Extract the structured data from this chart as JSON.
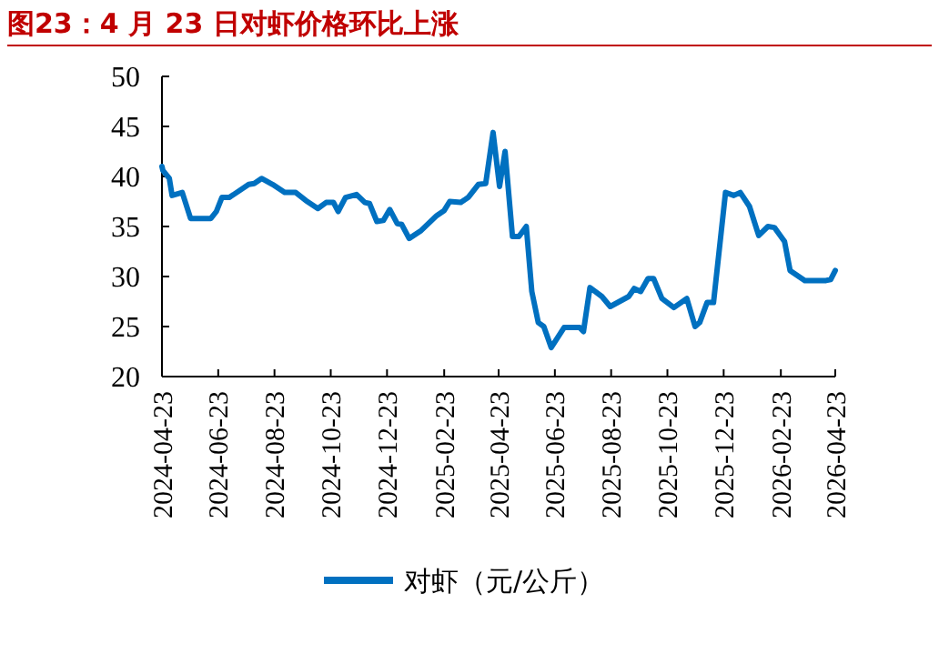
{
  "chart_data": {
    "type": "line",
    "title": "图23：4 月 23 日对虾价格环比上涨",
    "x": [
      "2024-04-23",
      "2024-04-24",
      "2024-05-01",
      "2024-05-04",
      "2024-05-15",
      "2024-05-24",
      "2024-06-15",
      "2024-06-21",
      "2024-06-27",
      "2024-07-05",
      "2024-07-26",
      "2024-08-01",
      "2024-08-09",
      "2024-08-21",
      "2024-09-03",
      "2024-09-15",
      "2024-09-26",
      "2024-10-09",
      "2024-10-18",
      "2024-10-26",
      "2024-10-31",
      "2024-11-08",
      "2024-11-20",
      "2024-11-29",
      "2024-12-04",
      "2024-12-12",
      "2024-12-19",
      "2024-12-26",
      "2025-01-03",
      "2025-01-08",
      "2025-01-16",
      "2025-01-29",
      "2025-02-15",
      "2025-02-23",
      "2025-03-01",
      "2025-03-13",
      "2025-03-21",
      "2025-04-01",
      "2025-04-09",
      "2025-04-17",
      "2025-04-24",
      "2025-04-30",
      "2025-05-08",
      "2025-05-15",
      "2025-05-23",
      "2025-05-29",
      "2025-06-05",
      "2025-06-11",
      "2025-06-19",
      "2025-07-03",
      "2025-07-20",
      "2025-07-24",
      "2025-07-31",
      "2025-08-13",
      "2025-08-22",
      "2025-09-01",
      "2025-09-11",
      "2025-09-17",
      "2025-09-24",
      "2025-10-02",
      "2025-10-08",
      "2025-10-17",
      "2025-10-30",
      "2025-11-13",
      "2025-11-22",
      "2025-11-27",
      "2025-12-05",
      "2025-12-12",
      "2025-12-25",
      "2026-01-03",
      "2026-01-10",
      "2026-01-20",
      "2026-01-30",
      "2026-02-09",
      "2026-02-16",
      "2026-02-27",
      "2026-03-05",
      "2026-03-21",
      "2026-04-13",
      "2026-04-18",
      "2026-04-23"
    ],
    "series": [
      {
        "name": "对虾（元/公斤）",
        "color": "#0070c0",
        "values": [
          41.0,
          40.6,
          39.8,
          38.1,
          38.4,
          35.8,
          35.8,
          36.5,
          37.9,
          37.9,
          39.2,
          39.3,
          39.8,
          39.2,
          38.4,
          38.4,
          37.6,
          36.8,
          37.4,
          37.4,
          36.5,
          37.9,
          38.2,
          37.4,
          37.3,
          35.5,
          35.6,
          36.7,
          35.3,
          35.2,
          33.8,
          34.6,
          36.1,
          36.6,
          37.5,
          37.4,
          37.9,
          39.2,
          39.3,
          44.4,
          39.0,
          42.5,
          34.0,
          34.0,
          35.0,
          28.5,
          25.4,
          25.0,
          22.9,
          24.9,
          24.9,
          24.5,
          28.9,
          28.0,
          27.0,
          27.5,
          28.0,
          28.8,
          28.5,
          29.8,
          29.8,
          27.8,
          26.9,
          27.8,
          25.0,
          25.4,
          27.4,
          27.4,
          38.4,
          38.1,
          38.4,
          37.0,
          34.1,
          35.0,
          34.9,
          33.5,
          30.6,
          29.6,
          29.6,
          29.7,
          30.6
        ]
      }
    ],
    "xlim": [
      "2024-04-23",
      "2026-04-23"
    ],
    "xticks": [
      "2024-04-23",
      "2024-06-23",
      "2024-08-23",
      "2024-10-23",
      "2024-12-23",
      "2025-02-23",
      "2025-04-23",
      "2025-06-23",
      "2025-08-23",
      "2025-10-23",
      "2025-12-23",
      "2026-02-23",
      "2026-04-23"
    ],
    "ylim": [
      20,
      50
    ],
    "yticks": [
      20,
      25,
      30,
      35,
      40,
      45,
      50
    ],
    "grid": false,
    "legend": "bottom",
    "marker": "none",
    "line_style": "solid"
  }
}
